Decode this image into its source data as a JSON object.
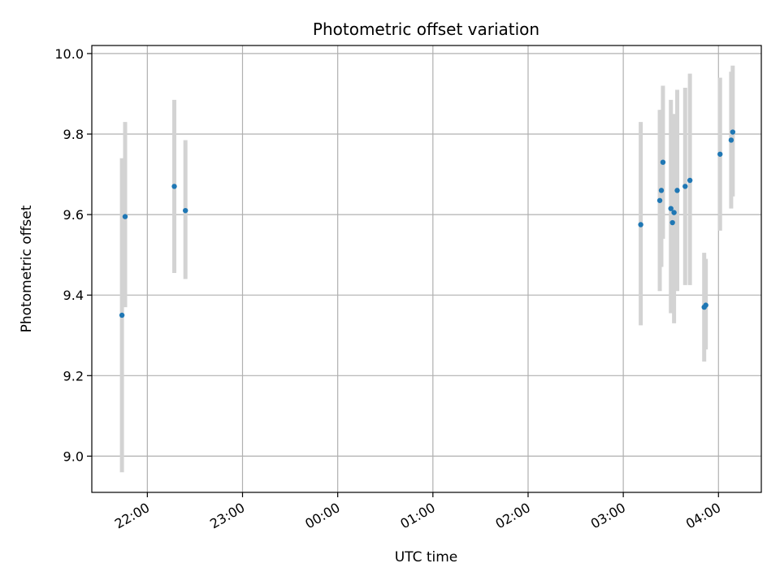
{
  "chart_data": {
    "type": "scatter",
    "title": "Photometric offset variation",
    "xlabel": "UTC time",
    "ylabel": "Photometric offset",
    "x_ticks": [
      "22:00",
      "23:00",
      "00:00",
      "01:00",
      "02:00",
      "03:00",
      "04:00"
    ],
    "y_ticks": [
      "9.0",
      "9.2",
      "9.4",
      "9.6",
      "9.8",
      "10.0"
    ],
    "xlim": [
      "21:25",
      "04:27"
    ],
    "ylim": [
      8.91,
      10.02
    ],
    "grid": true,
    "marker_color": "#1f77b4",
    "errorbar_color": "#d3d3d3",
    "points": [
      {
        "time": "21:44",
        "y": 9.35,
        "ylow": 8.96,
        "yhigh": 9.74
      },
      {
        "time": "21:46",
        "y": 9.595,
        "ylow": 9.37,
        "yhigh": 9.83
      },
      {
        "time": "22:17",
        "y": 9.67,
        "ylow": 9.455,
        "yhigh": 9.885
      },
      {
        "time": "22:24",
        "y": 9.61,
        "ylow": 9.44,
        "yhigh": 9.785
      },
      {
        "time": "03:11",
        "y": 9.575,
        "ylow": 9.325,
        "yhigh": 9.83
      },
      {
        "time": "03:23",
        "y": 9.635,
        "ylow": 9.41,
        "yhigh": 9.86
      },
      {
        "time": "03:24",
        "y": 9.66,
        "ylow": 9.47,
        "yhigh": 9.86
      },
      {
        "time": "03:25",
        "y": 9.73,
        "ylow": 9.54,
        "yhigh": 9.92
      },
      {
        "time": "03:30",
        "y": 9.615,
        "ylow": 9.355,
        "yhigh": 9.885
      },
      {
        "time": "03:31",
        "y": 9.58,
        "ylow": 9.36,
        "yhigh": 9.8
      },
      {
        "time": "03:32",
        "y": 9.605,
        "ylow": 9.33,
        "yhigh": 9.85
      },
      {
        "time": "03:34",
        "y": 9.66,
        "ylow": 9.41,
        "yhigh": 9.91
      },
      {
        "time": "03:39",
        "y": 9.67,
        "ylow": 9.425,
        "yhigh": 9.915
      },
      {
        "time": "03:42",
        "y": 9.685,
        "ylow": 9.425,
        "yhigh": 9.95
      },
      {
        "time": "03:51",
        "y": 9.37,
        "ylow": 9.235,
        "yhigh": 9.505
      },
      {
        "time": "03:52",
        "y": 9.375,
        "ylow": 9.265,
        "yhigh": 9.49
      },
      {
        "time": "04:01",
        "y": 9.75,
        "ylow": 9.56,
        "yhigh": 9.94
      },
      {
        "time": "04:08",
        "y": 9.785,
        "ylow": 9.615,
        "yhigh": 9.955
      },
      {
        "time": "04:09",
        "y": 9.805,
        "ylow": 9.645,
        "yhigh": 9.97
      }
    ]
  }
}
